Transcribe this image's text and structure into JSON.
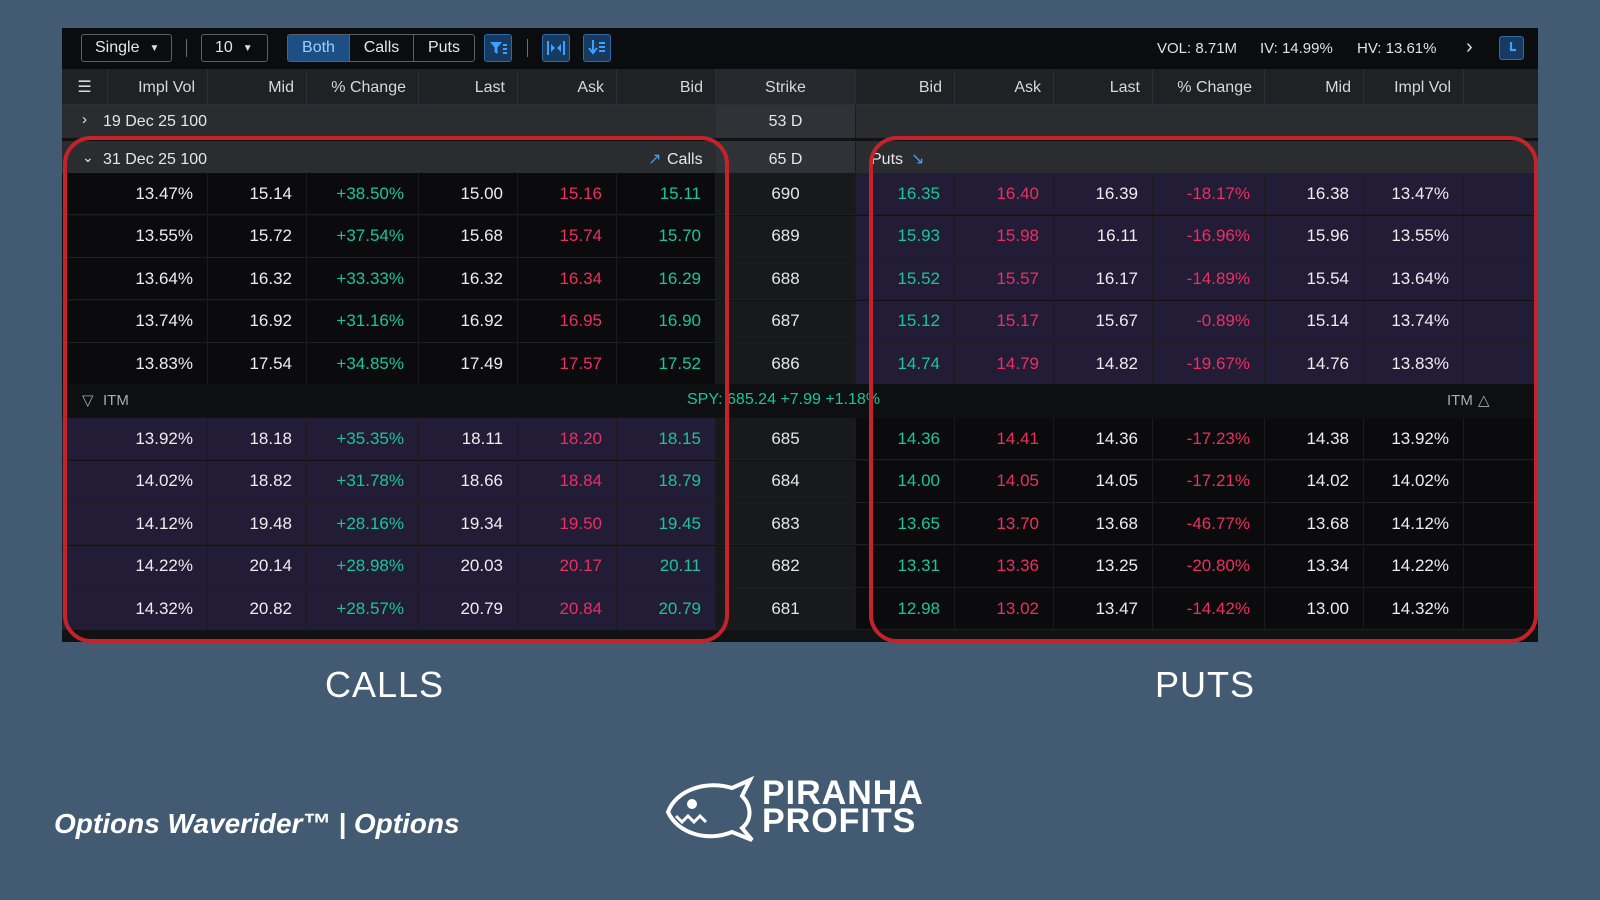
{
  "toolbar": {
    "mode_select": "Single",
    "strikes_select": "10",
    "segments": [
      "Both",
      "Calls",
      "Puts"
    ],
    "active_segment": "Both",
    "vol": "VOL: 8.71M",
    "iv": "IV: 14.99%",
    "hv": "HV: 13.61%",
    "more": "›"
  },
  "columns": {
    "calls": [
      "Impl Vol",
      "Mid",
      "% Change",
      "Last",
      "Ask",
      "Bid"
    ],
    "strike": "Strike",
    "puts": [
      "Bid",
      "Ask",
      "Last",
      "% Change",
      "Mid",
      "Impl Vol"
    ]
  },
  "expirations": [
    {
      "label": "19 Dec 25 100",
      "days": "53 D",
      "expanded": false
    },
    {
      "label": "31 Dec 25 100",
      "days": "65 D",
      "expanded": true,
      "calls_label": "Calls",
      "puts_label": "Puts"
    }
  ],
  "otm_rows": [
    {
      "c_iv": "13.47%",
      "c_mid": "15.14",
      "c_chg": "+38.50%",
      "c_last": "15.00",
      "c_ask": "15.16",
      "c_bid": "15.11",
      "strike": "690",
      "p_bid": "16.35",
      "p_ask": "16.40",
      "p_last": "16.39",
      "p_chg": "-18.17%",
      "p_mid": "16.38",
      "p_iv": "13.47%"
    },
    {
      "c_iv": "13.55%",
      "c_mid": "15.72",
      "c_chg": "+37.54%",
      "c_last": "15.68",
      "c_ask": "15.74",
      "c_bid": "15.70",
      "strike": "689",
      "p_bid": "15.93",
      "p_ask": "15.98",
      "p_last": "16.11",
      "p_chg": "-16.96%",
      "p_mid": "15.96",
      "p_iv": "13.55%"
    },
    {
      "c_iv": "13.64%",
      "c_mid": "16.32",
      "c_chg": "+33.33%",
      "c_last": "16.32",
      "c_ask": "16.34",
      "c_bid": "16.29",
      "strike": "688",
      "p_bid": "15.52",
      "p_ask": "15.57",
      "p_last": "16.17",
      "p_chg": "-14.89%",
      "p_mid": "15.54",
      "p_iv": "13.64%"
    },
    {
      "c_iv": "13.74%",
      "c_mid": "16.92",
      "c_chg": "+31.16%",
      "c_last": "16.92",
      "c_ask": "16.95",
      "c_bid": "16.90",
      "strike": "687",
      "p_bid": "15.12",
      "p_ask": "15.17",
      "p_last": "15.67",
      "p_chg": "-0.89%",
      "p_mid": "15.14",
      "p_iv": "13.74%"
    },
    {
      "c_iv": "13.83%",
      "c_mid": "17.54",
      "c_chg": "+34.85%",
      "c_last": "17.49",
      "c_ask": "17.57",
      "c_bid": "17.52",
      "strike": "686",
      "p_bid": "14.74",
      "p_ask": "14.79",
      "p_last": "14.82",
      "p_chg": "-19.67%",
      "p_mid": "14.76",
      "p_iv": "13.83%"
    }
  ],
  "itm_divider": {
    "left": "ITM",
    "center": "SPY: 685.24 +7.99 +1.18%",
    "right": "ITM"
  },
  "itm_rows": [
    {
      "c_iv": "13.92%",
      "c_mid": "18.18",
      "c_chg": "+35.35%",
      "c_last": "18.11",
      "c_ask": "18.20",
      "c_bid": "18.15",
      "strike": "685",
      "p_bid": "14.36",
      "p_ask": "14.41",
      "p_last": "14.36",
      "p_chg": "-17.23%",
      "p_mid": "14.38",
      "p_iv": "13.92%"
    },
    {
      "c_iv": "14.02%",
      "c_mid": "18.82",
      "c_chg": "+31.78%",
      "c_last": "18.66",
      "c_ask": "18.84",
      "c_bid": "18.79",
      "strike": "684",
      "p_bid": "14.00",
      "p_ask": "14.05",
      "p_last": "14.05",
      "p_chg": "-17.21%",
      "p_mid": "14.02",
      "p_iv": "14.02%"
    },
    {
      "c_iv": "14.12%",
      "c_mid": "19.48",
      "c_chg": "+28.16%",
      "c_last": "19.34",
      "c_ask": "19.50",
      "c_bid": "19.45",
      "strike": "683",
      "p_bid": "13.65",
      "p_ask": "13.70",
      "p_last": "13.68",
      "p_chg": "-46.77%",
      "p_mid": "13.68",
      "p_iv": "14.12%"
    },
    {
      "c_iv": "14.22%",
      "c_mid": "20.14",
      "c_chg": "+28.98%",
      "c_last": "20.03",
      "c_ask": "20.17",
      "c_bid": "20.11",
      "strike": "682",
      "p_bid": "13.31",
      "p_ask": "13.36",
      "p_last": "13.25",
      "p_chg": "-20.80%",
      "p_mid": "13.34",
      "p_iv": "14.22%"
    },
    {
      "c_iv": "14.32%",
      "c_mid": "20.82",
      "c_chg": "+28.57%",
      "c_last": "20.79",
      "c_ask": "20.84",
      "c_bid": "20.79",
      "strike": "681",
      "p_bid": "12.98",
      "p_ask": "13.02",
      "p_last": "13.47",
      "p_chg": "-14.42%",
      "p_mid": "13.00",
      "p_iv": "14.32%"
    }
  ],
  "captions": {
    "calls": "CALLS",
    "puts": "PUTS"
  },
  "footer": {
    "title": "Options Waverider™ | Options",
    "logo_line1": "PIRANHA",
    "logo_line2": "PROFITS"
  },
  "colors": {
    "background": "#435a73",
    "positive": "#18c59c",
    "negative": "#ea2f62",
    "highlight": "#c4232b",
    "active_segment": "#1d4f86"
  }
}
